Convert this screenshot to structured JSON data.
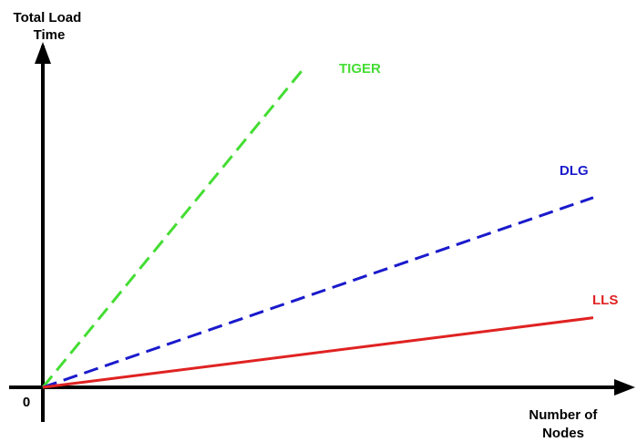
{
  "chart_data": {
    "type": "line",
    "title": "",
    "xlabel": [
      "Number of",
      "Nodes"
    ],
    "ylabel": [
      "Total Load",
      "Time"
    ],
    "origin_label": "0",
    "grid": false,
    "legend": "inline-labels-at-line-ends",
    "xlim": [
      0,
      100
    ],
    "ylim": [
      0,
      100
    ],
    "series": [
      {
        "name": "TIGER",
        "color": "#44dd33",
        "style": "dashed",
        "x": [
          0,
          47
        ],
        "y": [
          0,
          100
        ]
      },
      {
        "name": "DLG",
        "color": "#1a1acc",
        "style": "dashed",
        "x": [
          0,
          100
        ],
        "y": [
          0,
          60
        ]
      },
      {
        "name": "LLS",
        "color": "#e02222",
        "style": "solid",
        "x": [
          0,
          100
        ],
        "y": [
          0,
          22
        ]
      }
    ]
  }
}
